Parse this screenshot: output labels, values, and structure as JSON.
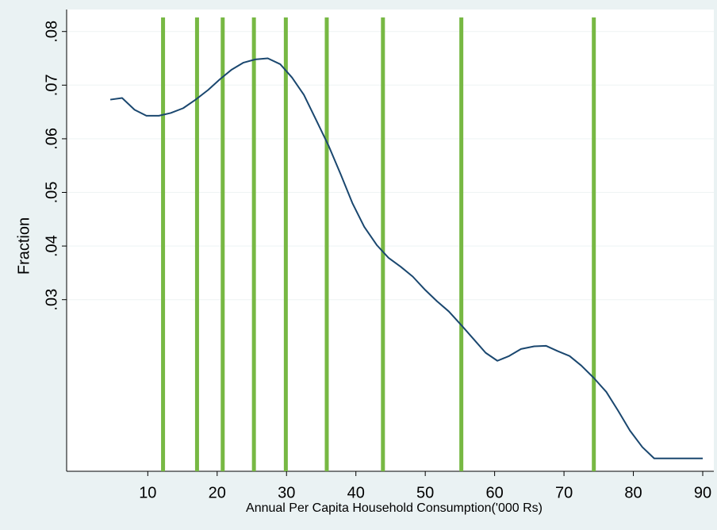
{
  "chart_data": {
    "type": "line",
    "x_label": "Annual Per Capita Household Consumption('000 Rs)",
    "y_label": "Fraction",
    "x": [
      4.6,
      6.3,
      8.1,
      9.8,
      11.6,
      13.3,
      15.1,
      16.9,
      18.7,
      20.4,
      22.1,
      23.8,
      25.5,
      27.3,
      29.1,
      30.8,
      32.5,
      34.2,
      36.1,
      37.8,
      39.5,
      41.2,
      43.0,
      44.7,
      46.5,
      48.2,
      50.0,
      51.7,
      53.4,
      55.3,
      57.0,
      58.7,
      60.4,
      62.1,
      63.8,
      65.7,
      67.4,
      69.1,
      70.8,
      72.5,
      74.3,
      76.1,
      77.8,
      79.5,
      81.3,
      83.0,
      84.7,
      86.5,
      88.2,
      90.0
    ],
    "values": [
      0.0673,
      0.0676,
      0.0654,
      0.0643,
      0.0643,
      0.0648,
      0.0657,
      0.0673,
      0.0691,
      0.0711,
      0.0729,
      0.0742,
      0.0748,
      0.075,
      0.0739,
      0.0714,
      0.0682,
      0.0637,
      0.0586,
      0.0534,
      0.048,
      0.0436,
      0.0402,
      0.0378,
      0.0361,
      0.0343,
      0.0318,
      0.0297,
      0.0278,
      0.0251,
      0.0226,
      0.0201,
      0.0186,
      0.0195,
      0.0208,
      0.0213,
      0.0214,
      0.0204,
      0.0195,
      0.0177,
      0.0154,
      0.0128,
      0.0093,
      0.0056,
      0.0025,
      0.0004,
      0.0004,
      0.0004,
      0.0004,
      0.0004
    ],
    "color": "#1a476f",
    "vlines": [
      12.2,
      17.1,
      20.8,
      25.3,
      29.9,
      35.8,
      43.9,
      55.2,
      74.3
    ],
    "vline_color": "#77b843",
    "xlim": [
      -1.7,
      91.6
    ],
    "xticks": [
      10,
      20,
      30,
      40,
      50,
      60,
      70,
      80,
      90
    ],
    "ylim": [
      -0.002,
      0.0841
    ],
    "yticks": [
      {
        "value": 0.03,
        "label": ".03"
      },
      {
        "value": 0.04,
        "label": ".04"
      },
      {
        "value": 0.05,
        "label": ".05"
      },
      {
        "value": 0.06,
        "label": ".06"
      },
      {
        "value": 0.07,
        "label": ".07"
      },
      {
        "value": 0.08,
        "label": ".08"
      }
    ],
    "grid": true
  }
}
